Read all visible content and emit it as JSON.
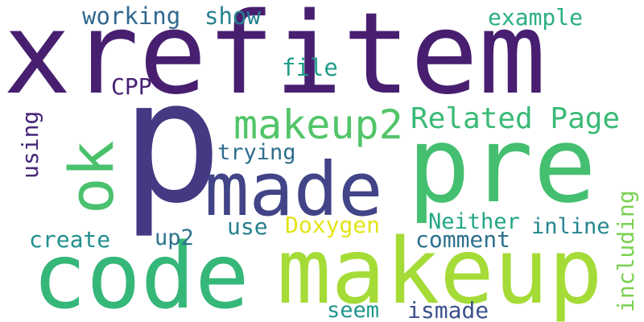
{
  "words": [
    {
      "text": "xrefitem",
      "color": "#481f70"
    },
    {
      "text": "p",
      "color": "#443982"
    },
    {
      "text": "pre",
      "color": "#44bf70"
    },
    {
      "text": "code",
      "color": "#35b779"
    },
    {
      "text": "makeup",
      "color": "#a5db36"
    },
    {
      "text": "made",
      "color": "#414487"
    },
    {
      "text": "ok",
      "color": "#4ac16d"
    },
    {
      "text": "makeup2",
      "color": "#52c569"
    },
    {
      "text": "Related Page",
      "color": "#3aba76"
    },
    {
      "text": "working",
      "color": "#31688e"
    },
    {
      "text": "show",
      "color": "#26828e"
    },
    {
      "text": "example",
      "color": "#29af7f"
    },
    {
      "text": "file",
      "color": "#1f9e89"
    },
    {
      "text": "CPP",
      "color": "#482173"
    },
    {
      "text": "using",
      "color": "#482878"
    },
    {
      "text": "trying",
      "color": "#2e6d8e"
    },
    {
      "text": "including",
      "color": "#7ad151"
    },
    {
      "text": "use",
      "color": "#277f8e"
    },
    {
      "text": "Doxygen",
      "color": "#e3e418"
    },
    {
      "text": "Neither",
      "color": "#21a685"
    },
    {
      "text": "inline",
      "color": "#25858e"
    },
    {
      "text": "create",
      "color": "#218f8d"
    },
    {
      "text": "up2",
      "color": "#2c728e"
    },
    {
      "text": "comment",
      "color": "#2d708e"
    },
    {
      "text": "seem",
      "color": "#1f968b"
    },
    {
      "text": "ismade",
      "color": "#3b528b"
    }
  ]
}
